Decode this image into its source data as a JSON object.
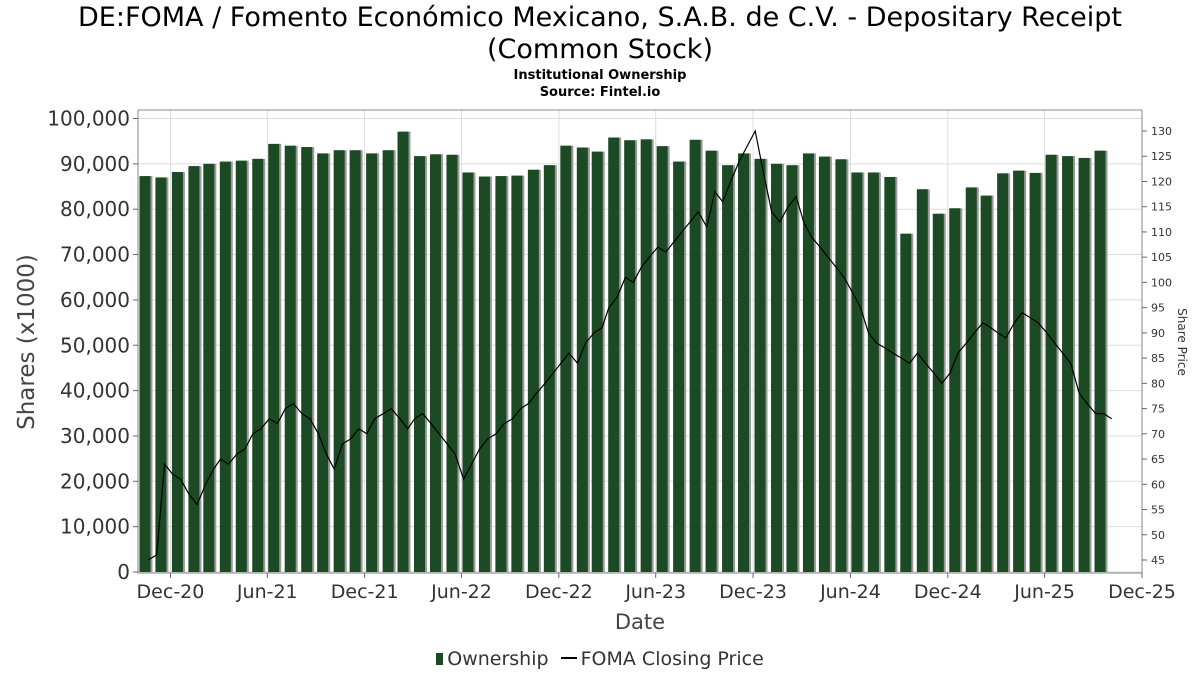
{
  "header": {
    "title_line1": "DE:FOMA / Fomento Económico Mexicano, S.A.B. de C.V. - Depositary Receipt",
    "title_line2": "(Common Stock)",
    "subtitle": "Institutional Ownership",
    "source": "Source: Fintel.io"
  },
  "legend": {
    "ownership": "Ownership",
    "price": "FOMA Closing Price"
  },
  "colors": {
    "bar": "#1b4a24",
    "bar_shadow": "#9a9a9a",
    "line": "#000000",
    "grid": "#dddddd"
  },
  "chart_data": {
    "type": "bar",
    "xlabel": "Date",
    "ylabel": "Shares (x1000)",
    "y2label": "Share Price",
    "ylim": [
      0,
      100000
    ],
    "y2lim": [
      43,
      131
    ],
    "grid": true,
    "legend_position": "bottom",
    "x_ticks": [
      "Dec-20",
      "Jun-21",
      "Dec-21",
      "Jun-22",
      "Dec-22",
      "Jun-23",
      "Dec-23",
      "Jun-24",
      "Dec-24",
      "Jun-25",
      "Dec-25"
    ],
    "y_ticks": [
      "0",
      "10,000",
      "20,000",
      "30,000",
      "40,000",
      "50,000",
      "60,000",
      "70,000",
      "80,000",
      "90,000",
      "100,000"
    ],
    "y2_ticks": [
      "45",
      "50",
      "55",
      "60",
      "65",
      "70",
      "75",
      "80",
      "85",
      "90",
      "95",
      "100",
      "105",
      "110",
      "115",
      "120",
      "125",
      "130"
    ],
    "x_start": "2020-10-01",
    "x_end": "2025-12-01",
    "series": [
      {
        "name": "Ownership",
        "dates": [
          "2020-10-31",
          "2020-11-30",
          "2020-12-31",
          "2021-01-31",
          "2021-02-28",
          "2021-03-31",
          "2021-04-30",
          "2021-05-31",
          "2021-06-30",
          "2021-07-31",
          "2021-08-31",
          "2021-09-30",
          "2021-10-31",
          "2021-11-30",
          "2021-12-31",
          "2022-01-31",
          "2022-02-28",
          "2022-03-31",
          "2022-04-30",
          "2022-05-31",
          "2022-06-30",
          "2022-07-31",
          "2022-08-31",
          "2022-09-30",
          "2022-10-31",
          "2022-11-30",
          "2022-12-31",
          "2023-01-31",
          "2023-02-28",
          "2023-03-31",
          "2023-04-30",
          "2023-05-31",
          "2023-06-30",
          "2023-07-31",
          "2023-08-31",
          "2023-09-30",
          "2023-10-31",
          "2023-11-30",
          "2023-12-31",
          "2024-01-31",
          "2024-02-29",
          "2024-03-31",
          "2024-04-30",
          "2024-05-31",
          "2024-06-30",
          "2024-07-31",
          "2024-08-31",
          "2024-09-30",
          "2024-10-31",
          "2024-11-30",
          "2024-12-31",
          "2025-01-31",
          "2025-02-28",
          "2025-03-31",
          "2025-04-30",
          "2025-05-31",
          "2025-06-30",
          "2025-07-31",
          "2025-08-31",
          "2025-09-30"
        ],
        "values": [
          87300,
          87000,
          88200,
          89500,
          90000,
          90500,
          90700,
          91100,
          94400,
          94000,
          93700,
          92300,
          93000,
          93000,
          92300,
          93000,
          97100,
          91700,
          92100,
          92000,
          88100,
          87200,
          87300,
          87400,
          88700,
          89700,
          94000,
          93600,
          92700,
          95800,
          95200,
          95400,
          93900,
          90500,
          95300,
          92900,
          89700,
          92300,
          91100,
          90000,
          89700,
          92300,
          91600,
          91000,
          88100,
          88100,
          87100,
          74600,
          84400,
          79000,
          80200,
          84800,
          83000,
          87900,
          88500,
          88000,
          92000,
          91700,
          91300,
          92900
        ]
      },
      {
        "name": "FOMA Closing Price",
        "dates": [
          "2020-10-20",
          "2020-11-05",
          "2020-11-20",
          "2020-12-05",
          "2020-12-20",
          "2021-01-05",
          "2021-01-20",
          "2021-02-05",
          "2021-02-20",
          "2021-03-05",
          "2021-03-20",
          "2021-04-05",
          "2021-04-20",
          "2021-05-05",
          "2021-05-20",
          "2021-06-05",
          "2021-06-20",
          "2021-07-05",
          "2021-07-20",
          "2021-08-05",
          "2021-08-20",
          "2021-09-05",
          "2021-09-20",
          "2021-10-05",
          "2021-10-20",
          "2021-11-05",
          "2021-11-20",
          "2021-12-05",
          "2021-12-20",
          "2022-01-05",
          "2022-01-20",
          "2022-02-05",
          "2022-02-20",
          "2022-03-05",
          "2022-03-20",
          "2022-04-05",
          "2022-04-20",
          "2022-05-05",
          "2022-05-20",
          "2022-06-05",
          "2022-06-20",
          "2022-07-05",
          "2022-07-20",
          "2022-08-05",
          "2022-08-20",
          "2022-09-05",
          "2022-09-20",
          "2022-10-05",
          "2022-10-20",
          "2022-11-05",
          "2022-11-20",
          "2022-12-05",
          "2022-12-20",
          "2023-01-05",
          "2023-01-20",
          "2023-02-05",
          "2023-02-20",
          "2023-03-05",
          "2023-03-20",
          "2023-04-05",
          "2023-04-20",
          "2023-05-05",
          "2023-05-20",
          "2023-06-05",
          "2023-06-20",
          "2023-07-05",
          "2023-07-20",
          "2023-08-05",
          "2023-08-20",
          "2023-09-05",
          "2023-09-20",
          "2023-10-05",
          "2023-10-20",
          "2023-11-05",
          "2023-11-20",
          "2023-12-05",
          "2023-12-20",
          "2024-01-05",
          "2024-01-20",
          "2024-02-05",
          "2024-02-20",
          "2024-03-05",
          "2024-03-20",
          "2024-04-05",
          "2024-04-20",
          "2024-05-05",
          "2024-05-20",
          "2024-06-05",
          "2024-06-20",
          "2024-07-05",
          "2024-07-20",
          "2024-08-05",
          "2024-08-20",
          "2024-09-05",
          "2024-09-20",
          "2024-10-05",
          "2024-10-20",
          "2024-11-05",
          "2024-11-20",
          "2024-12-05",
          "2024-12-20",
          "2025-01-05",
          "2025-01-20",
          "2025-02-05",
          "2025-02-20",
          "2025-03-05",
          "2025-03-20",
          "2025-04-05",
          "2025-04-20",
          "2025-05-05",
          "2025-05-20",
          "2025-06-05",
          "2025-06-20",
          "2025-07-05",
          "2025-07-20",
          "2025-08-05",
          "2025-08-20",
          "2025-09-05",
          "2025-09-20",
          "2025-10-05"
        ],
        "values": [
          45,
          46,
          64,
          62,
          61,
          58,
          56,
          60,
          63,
          65,
          64,
          66,
          67,
          70,
          71,
          73,
          72,
          75,
          76,
          74,
          73,
          70,
          66,
          63,
          68,
          69,
          71,
          70,
          73,
          74,
          75,
          73,
          71,
          73,
          74,
          72,
          70,
          68,
          66,
          61,
          64,
          67,
          69,
          70,
          72,
          73,
          75,
          76,
          78,
          80,
          82,
          84,
          86,
          84,
          88,
          90,
          91,
          95,
          97,
          101,
          100,
          103,
          105,
          107,
          106,
          108,
          110,
          112,
          114,
          111,
          118,
          116,
          120,
          124,
          127,
          130,
          122,
          114,
          112,
          115,
          117,
          112,
          109,
          107,
          105,
          103,
          101,
          98,
          95,
          90,
          88,
          87,
          86,
          85,
          84,
          86,
          84,
          82,
          80,
          82,
          86,
          88,
          90,
          92,
          91,
          90,
          89,
          92,
          94,
          93,
          92,
          90,
          88,
          86,
          84,
          78,
          76,
          74,
          74,
          73
        ]
      }
    ]
  }
}
